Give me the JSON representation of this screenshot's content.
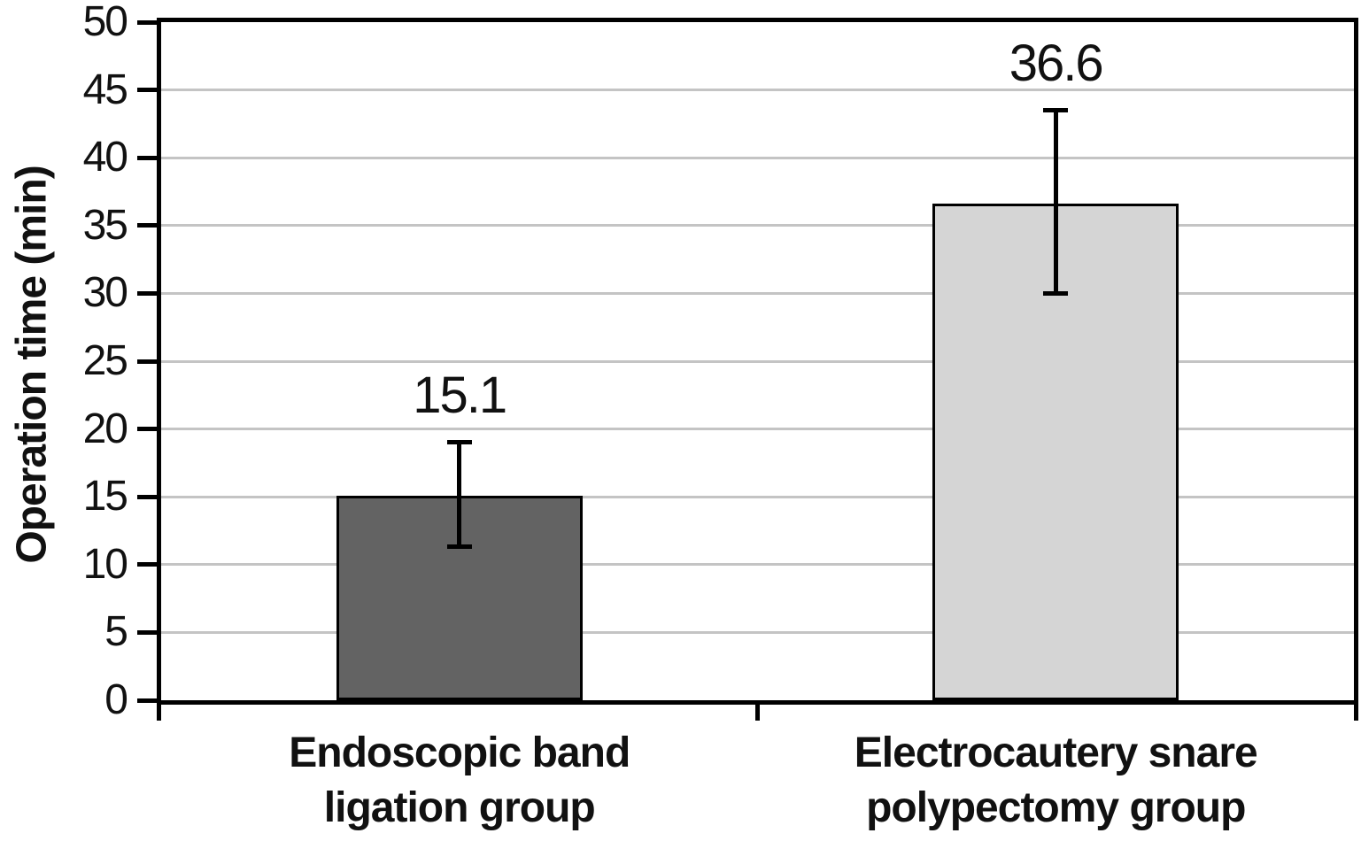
{
  "chart_data": {
    "type": "bar",
    "title": "",
    "xlabel": "",
    "ylabel": "Operation time (min)",
    "ylim": [
      0,
      50
    ],
    "ytick_step": 5,
    "yticks": [
      0,
      5,
      10,
      15,
      20,
      25,
      30,
      35,
      40,
      45,
      50
    ],
    "grid": true,
    "legend": false,
    "categories": [
      {
        "lines": [
          "Endoscopic band",
          "ligation group"
        ]
      },
      {
        "lines": [
          "Electrocautery snare",
          "polypectomy group"
        ]
      }
    ],
    "series": [
      {
        "name": "Operation time (min)",
        "values": [
          15.1,
          36.6
        ],
        "error_plus": [
          3.9,
          6.9
        ],
        "error_minus": [
          3.8,
          6.6
        ],
        "data_labels": [
          "15.1",
          "36.6"
        ],
        "bar_fills": [
          "#636363",
          "#d5d5d5"
        ],
        "bar_border": "#000000"
      }
    ],
    "colors": {
      "gridline": "#c4c4c4",
      "axis": "#000000",
      "error_bar": "#000000",
      "background": "#ffffff",
      "text": "#111111"
    }
  }
}
